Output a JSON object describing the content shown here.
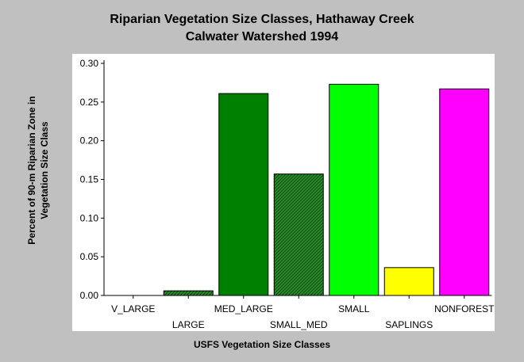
{
  "chart_data": {
    "type": "bar",
    "title": "Riparian Vegetation Size Classes, Hathaway Creek",
    "subtitle": "Calwater Watershed 1994",
    "xlabel": "USFS Vegetation Size Classes",
    "ylabel": "Percent of 90-m Riparian Zone in Vegetation Size Class",
    "categories": [
      "V_LARGE",
      "LARGE",
      "MED_LARGE",
      "SMALL_MED",
      "SMALL",
      "SAPLINGS",
      "NONFOREST"
    ],
    "values": [
      0.0,
      0.006,
      0.261,
      0.157,
      0.273,
      0.036,
      0.267
    ],
    "colors": [
      "#006400",
      "#1f6f1f",
      "#008000",
      "#2e8b2e",
      "#00ff00",
      "#ffff00",
      "#ff00ff"
    ],
    "patterns": [
      "solid",
      "hatched",
      "solid",
      "hatched",
      "solid",
      "solid",
      "solid"
    ],
    "ylim": [
      0,
      0.3
    ],
    "yticks": [
      "0.00",
      "0.05",
      "0.10",
      "0.15",
      "0.20",
      "0.25",
      "0.30"
    ],
    "grid": false,
    "legend": "none"
  }
}
